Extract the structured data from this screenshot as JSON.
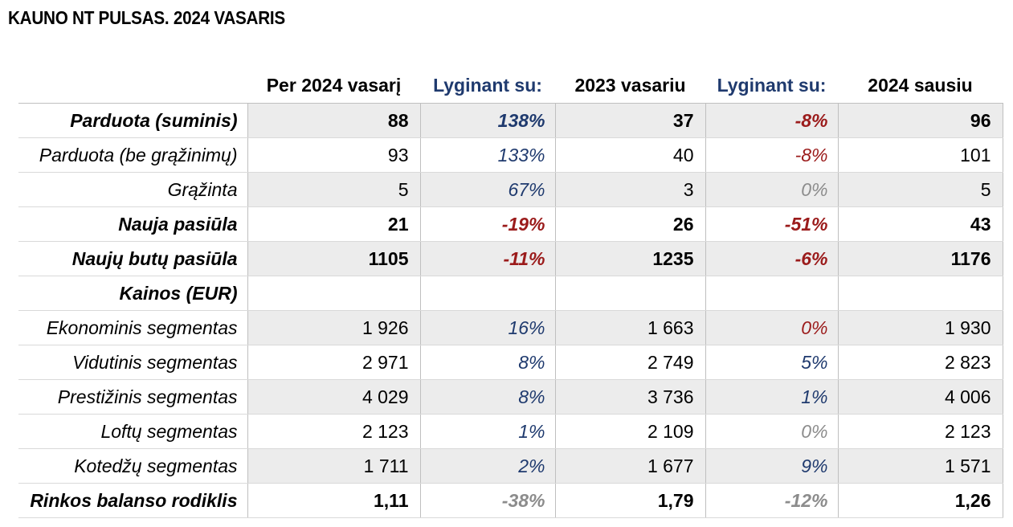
{
  "title": "KAUNO NT PULSAS. 2024 VASARIS",
  "headers": [
    "",
    "Per 2024 vasarį",
    "Lyginant su:",
    "2023 vasariu",
    "Lyginant su:",
    "2024 sausiu"
  ],
  "colors": {
    "blue": "#1f3a6e",
    "red": "#9b1b1b",
    "grey": "#8c8c8c",
    "shade": "#ececec"
  },
  "rows": [
    {
      "label": "Parduota (suminis)",
      "bold": true,
      "shade": true,
      "cur": "88",
      "pct1": "138%",
      "pct1_color": "blue",
      "y2023": "37",
      "pct2": "-8%",
      "pct2_color": "red",
      "jan": "96"
    },
    {
      "label": "Parduota (be grąžinimų)",
      "bold": false,
      "shade": false,
      "cur": "93",
      "pct1": "133%",
      "pct1_color": "blue",
      "y2023": "40",
      "pct2": "-8%",
      "pct2_color": "red",
      "jan": "101"
    },
    {
      "label": "Grąžinta",
      "bold": false,
      "shade": true,
      "cur": "5",
      "pct1": "67%",
      "pct1_color": "blue",
      "y2023": "3",
      "pct2": "0%",
      "pct2_color": "grey",
      "jan": "5"
    },
    {
      "label": "Nauja pasiūla",
      "bold": true,
      "shade": false,
      "cur": "21",
      "pct1": "-19%",
      "pct1_color": "red",
      "y2023": "26",
      "pct2": "-51%",
      "pct2_color": "red",
      "jan": "43"
    },
    {
      "label": "Naujų butų pasiūla",
      "bold": true,
      "shade": true,
      "cur": "1105",
      "pct1": "-11%",
      "pct1_color": "red",
      "y2023": "1235",
      "pct2": "-6%",
      "pct2_color": "red",
      "jan": "1176"
    },
    {
      "label": "Kainos (EUR)",
      "bold": true,
      "shade": false,
      "cur": "",
      "pct1": "",
      "pct1_color": "blue",
      "y2023": "",
      "pct2": "",
      "pct2_color": "blue",
      "jan": ""
    },
    {
      "label": "Ekonominis segmentas",
      "bold": false,
      "shade": true,
      "cur": "1 926",
      "pct1": "16%",
      "pct1_color": "blue",
      "y2023": "1 663",
      "pct2": "0%",
      "pct2_color": "red",
      "jan": "1 930"
    },
    {
      "label": "Vidutinis segmentas",
      "bold": false,
      "shade": false,
      "cur": "2 971",
      "pct1": "8%",
      "pct1_color": "blue",
      "y2023": "2 749",
      "pct2": "5%",
      "pct2_color": "blue",
      "jan": "2 823"
    },
    {
      "label": "Prestižinis segmentas",
      "bold": false,
      "shade": true,
      "cur": "4 029",
      "pct1": "8%",
      "pct1_color": "blue",
      "y2023": "3 736",
      "pct2": "1%",
      "pct2_color": "blue",
      "jan": "4 006"
    },
    {
      "label": "Loftų segmentas",
      "bold": false,
      "shade": false,
      "cur": "2 123",
      "pct1": "1%",
      "pct1_color": "blue",
      "y2023": "2 109",
      "pct2": "0%",
      "pct2_color": "grey",
      "jan": "2 123"
    },
    {
      "label": "Kotedžų segmentas",
      "bold": false,
      "shade": true,
      "cur": "1 711",
      "pct1": "2%",
      "pct1_color": "blue",
      "y2023": "1 677",
      "pct2": "9%",
      "pct2_color": "blue",
      "jan": "1 571"
    },
    {
      "label": "Rinkos balanso rodiklis",
      "bold": true,
      "shade": false,
      "cur": "1,11",
      "pct1": "-38%",
      "pct1_color": "grey",
      "y2023": "1,79",
      "pct2": "-12%",
      "pct2_color": "grey",
      "jan": "1,26"
    }
  ]
}
